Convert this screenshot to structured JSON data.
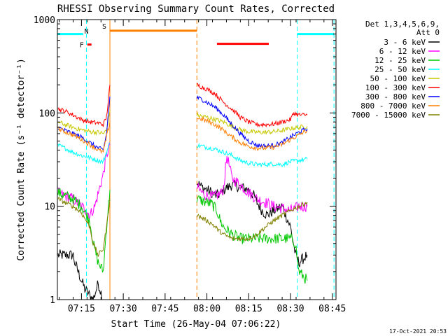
{
  "chart_data": {
    "type": "line",
    "title": "RHESSI Observing Summary Count Rates, Corrected",
    "xlabel": "Start Time (26-May-04 07:06:22)",
    "ylabel": "Corrected Count Rate (s⁻¹ detector⁻¹)",
    "ylog": true,
    "ylim": [
      1,
      1000
    ],
    "xlim": [
      7.106,
      8.772
    ],
    "y_ticks": [
      {
        "value": 1,
        "label": "1"
      },
      {
        "value": 10,
        "label": "10"
      },
      {
        "value": 100,
        "label": "100"
      },
      {
        "value": 1000,
        "label": "1000"
      }
    ],
    "x_ticks": [
      {
        "value": 7.25,
        "label": "07:15"
      },
      {
        "value": 7.5,
        "label": "07:30"
      },
      {
        "value": 7.75,
        "label": "07:45"
      },
      {
        "value": 8.0,
        "label": "08:00"
      },
      {
        "value": 8.25,
        "label": "08:15"
      },
      {
        "value": 8.5,
        "label": "08:30"
      },
      {
        "value": 8.75,
        "label": "08:45"
      }
    ],
    "legend": {
      "placement": "right",
      "header": [
        "Det 1,3,4,5,6,9,",
        "Att 0"
      ]
    },
    "series": [
      {
        "name": "3 - 6 keV",
        "color": "#000000",
        "x": [
          7.11,
          7.15,
          7.18,
          7.2,
          7.21,
          7.23,
          7.25,
          7.27,
          7.3,
          7.32,
          7.35,
          7.38,
          7.94,
          7.97,
          8.0,
          8.03,
          8.05,
          8.08,
          8.1,
          8.15,
          8.2,
          8.25,
          8.28,
          8.3,
          8.33,
          8.36,
          8.4,
          8.45,
          8.5,
          8.53,
          8.55,
          8.6
        ],
        "y": [
          3,
          3,
          3,
          3,
          2.5,
          2,
          1.6,
          1.3,
          1.1,
          1,
          1.5,
          1,
          18,
          16,
          15,
          14,
          13,
          13.5,
          15,
          17,
          16,
          15,
          13,
          11,
          9,
          8,
          9,
          10,
          6,
          3,
          2.5,
          3
        ]
      },
      {
        "name": "6 - 12 keV",
        "color": "#ff00ff",
        "x": [
          7.11,
          7.15,
          7.2,
          7.25,
          7.28,
          7.3,
          7.33,
          7.36,
          7.38,
          7.4,
          7.42,
          7.94,
          7.97,
          8.0,
          8.03,
          8.06,
          8.09,
          8.1,
          8.12,
          8.15,
          8.2,
          8.25,
          8.3,
          8.35,
          8.4,
          8.45,
          8.5,
          8.53,
          8.55,
          8.6
        ],
        "y": [
          14,
          13,
          12,
          10,
          9,
          8,
          10,
          16,
          22,
          35,
          45,
          16,
          14,
          13,
          12.5,
          13,
          14,
          16,
          35,
          20,
          17,
          14,
          12,
          11,
          10,
          9.5,
          9,
          9.5,
          10,
          10
        ]
      },
      {
        "name": "12 - 25 keV",
        "color": "#00c800",
        "x": [
          7.11,
          7.15,
          7.2,
          7.25,
          7.3,
          7.32,
          7.35,
          7.38,
          7.4,
          7.42,
          7.94,
          7.97,
          8.0,
          8.03,
          8.06,
          8.08,
          8.1,
          8.15,
          8.2,
          8.25,
          8.3,
          8.35,
          8.4,
          8.45,
          8.5,
          8.53,
          8.55,
          8.6
        ],
        "y": [
          14,
          13,
          12,
          10,
          7,
          4,
          2.5,
          2,
          6,
          15,
          12,
          11.5,
          11,
          10.5,
          9,
          7,
          6,
          5,
          4.5,
          4.5,
          4.5,
          4.5,
          4.5,
          4.5,
          4.5,
          4,
          2,
          1.6
        ]
      },
      {
        "name": "25 - 50 keV",
        "color": "#00ffff",
        "x": [
          7.11,
          7.15,
          7.2,
          7.25,
          7.3,
          7.35,
          7.38,
          7.4,
          7.42,
          7.94,
          7.97,
          8.0,
          8.05,
          8.1,
          8.15,
          8.2,
          8.25,
          8.3,
          8.35,
          8.4,
          8.45,
          8.5,
          8.55,
          8.6
        ],
        "y": [
          45,
          42,
          38,
          35,
          33,
          31,
          30,
          38,
          48,
          45,
          44,
          43,
          41,
          38,
          35,
          31,
          29,
          28,
          28,
          28.5,
          28,
          30,
          31,
          32
        ]
      },
      {
        "name": "50 - 100 keV",
        "color": "#c8c800",
        "x": [
          7.11,
          7.15,
          7.2,
          7.25,
          7.3,
          7.35,
          7.38,
          7.4,
          7.42,
          7.94,
          7.97,
          8.0,
          8.05,
          8.1,
          8.15,
          8.2,
          8.25,
          8.3,
          8.35,
          8.4,
          8.45,
          8.5,
          8.55,
          8.6
        ],
        "y": [
          80,
          75,
          70,
          66,
          63,
          62,
          60,
          65,
          105,
          95,
          92,
          90,
          85,
          80,
          72,
          66,
          63,
          62,
          62,
          63,
          65,
          68,
          70,
          72
        ]
      },
      {
        "name": "100 - 300 keV",
        "color": "#ff0000",
        "x": [
          7.11,
          7.15,
          7.2,
          7.25,
          7.3,
          7.35,
          7.38,
          7.4,
          7.42,
          7.94,
          7.97,
          8.0,
          8.05,
          8.1,
          8.15,
          8.2,
          8.25,
          8.3,
          8.35,
          8.4,
          8.45,
          8.5,
          8.52,
          8.55,
          8.6
        ],
        "y": [
          110,
          105,
          95,
          85,
          80,
          78,
          75,
          90,
          200,
          200,
          190,
          180,
          160,
          130,
          110,
          90,
          80,
          75,
          75,
          76,
          80,
          85,
          100,
          95,
          95
        ]
      },
      {
        "name": "300 - 800 keV",
        "color": "#0000ff",
        "x": [
          7.11,
          7.15,
          7.2,
          7.25,
          7.3,
          7.35,
          7.38,
          7.4,
          7.42,
          7.94,
          7.97,
          8.0,
          8.05,
          8.1,
          8.15,
          8.2,
          8.25,
          8.3,
          8.35,
          8.4,
          8.45,
          8.5,
          8.55,
          8.6
        ],
        "y": [
          70,
          65,
          60,
          55,
          48,
          42,
          40,
          60,
          150,
          145,
          140,
          130,
          115,
          95,
          75,
          60,
          50,
          45,
          44,
          45,
          48,
          55,
          62,
          68
        ]
      },
      {
        "name": "800 - 7000 keV",
        "color": "#ff8000",
        "x": [
          7.11,
          7.15,
          7.2,
          7.25,
          7.3,
          7.35,
          7.38,
          7.4,
          7.42,
          7.94,
          7.97,
          8.0,
          8.05,
          8.1,
          8.15,
          8.2,
          8.25,
          8.3,
          8.35,
          8.4,
          8.45,
          8.5,
          8.55,
          8.6
        ],
        "y": [
          68,
          63,
          58,
          52,
          46,
          40,
          38,
          55,
          80,
          88,
          86,
          82,
          75,
          65,
          55,
          48,
          44,
          42,
          42,
          43,
          46,
          52,
          58,
          65
        ]
      },
      {
        "name": "7000 - 15000 keV",
        "color": "#808000",
        "x": [
          7.11,
          7.15,
          7.2,
          7.25,
          7.3,
          7.32,
          7.35,
          7.38,
          7.4,
          7.42,
          7.94,
          7.97,
          8.0,
          8.03,
          8.05,
          8.07,
          8.1,
          8.15,
          8.2,
          8.25,
          8.3,
          8.35,
          8.4,
          8.45,
          8.5,
          8.55,
          8.6
        ],
        "y": [
          12,
          11,
          10,
          8.5,
          6,
          4,
          3,
          3.5,
          6,
          12,
          8,
          7.5,
          7,
          6.5,
          6,
          5.5,
          5,
          4.5,
          4.5,
          4.5,
          5,
          6,
          7,
          8,
          9,
          10,
          11
        ]
      }
    ],
    "annotations": {
      "gaps": [
        {
          "start": 7.42,
          "end": 7.94,
          "color": "#ff8000",
          "label": "S"
        },
        {
          "start": 8.54,
          "end": 8.76,
          "color": "#00ffff"
        },
        {
          "start": 7.106,
          "end": 7.28,
          "color": "#00ffff",
          "label": "N"
        }
      ],
      "bars": [
        {
          "x0": 7.106,
          "x1": 7.26,
          "y": 700,
          "color": "#00ffff"
        },
        {
          "x0": 7.42,
          "x1": 7.94,
          "y": 760,
          "color": "#ff8000"
        },
        {
          "x0": 8.06,
          "x1": 8.37,
          "y": 550,
          "color": "#ff0000"
        },
        {
          "x0": 8.54,
          "x1": 8.76,
          "y": 700,
          "color": "#00ffff"
        },
        {
          "x0": 7.285,
          "x1": 7.31,
          "y": 540,
          "color": "#ff0000",
          "label": "F"
        }
      ]
    }
  },
  "footer": {
    "timestamp": "17-Oct-2021 20:53"
  }
}
